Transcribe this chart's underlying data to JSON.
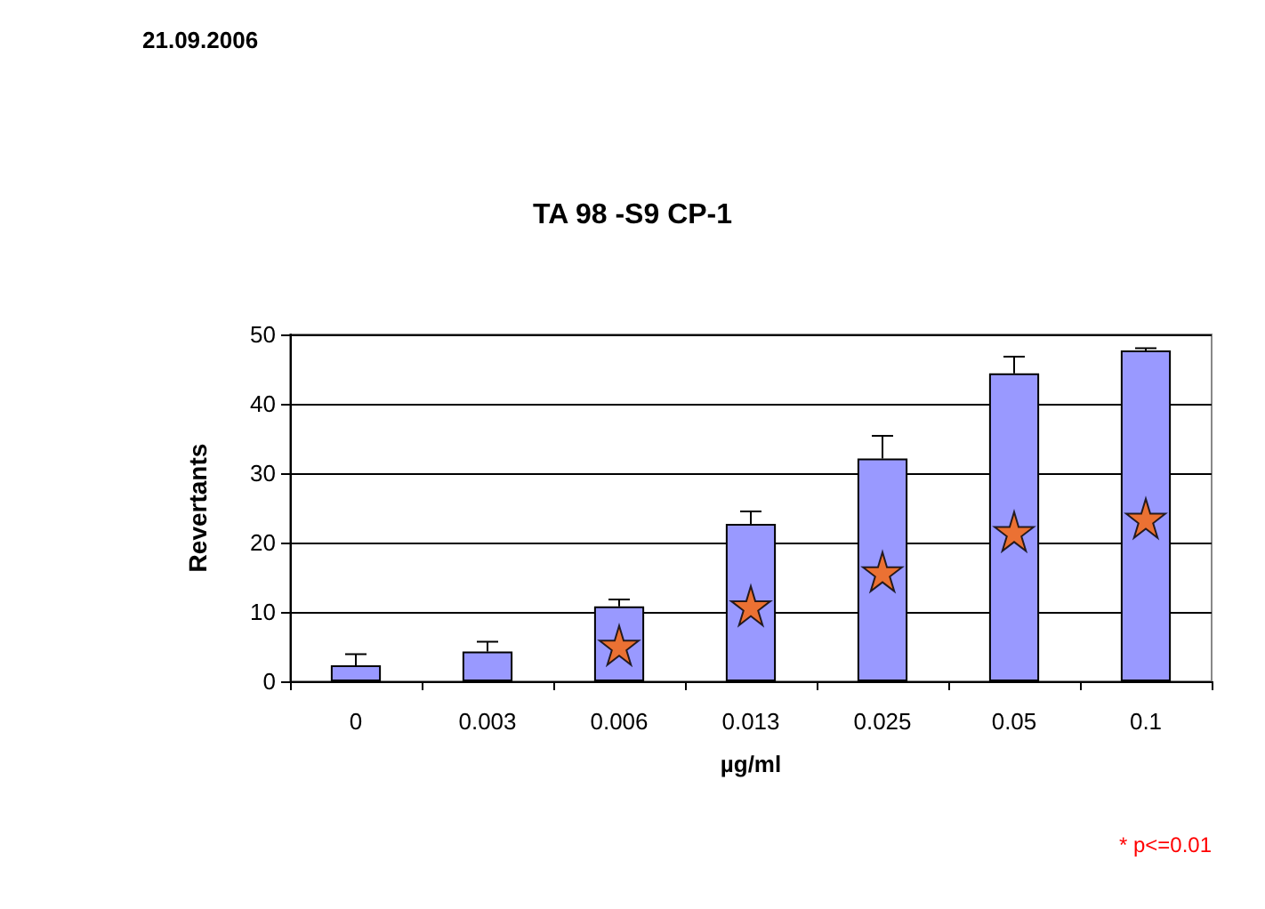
{
  "chart_data": {
    "type": "bar",
    "title": "TA 98 -S9 CP-1",
    "xlabel": "µg/ml",
    "ylabel": "Revertants",
    "categories": [
      "0",
      "0.003",
      "0.006",
      "0.013",
      "0.025",
      "0.05",
      "0.1"
    ],
    "series": [
      {
        "color": "#9999ff",
        "values": [
          2.3,
          4.3,
          10.8,
          22.7,
          32.1,
          44.4,
          47.7
        ],
        "errors": [
          [
            2.3,
            3.9
          ],
          [
            4.3,
            5.7
          ],
          [
            10.8,
            11.8
          ],
          [
            22.7,
            24.5
          ],
          [
            32.1,
            35.4
          ],
          [
            44.4,
            46.8
          ],
          [
            47.7,
            48
          ]
        ]
      },
      {
        "type": "scatter",
        "color": "#ff6600",
        "marker": "star",
        "x": [
          "0.006",
          "0.013",
          "0.025",
          "0.05",
          "0.1"
        ],
        "values": [
          5.2,
          10.9,
          15.8,
          21.6,
          23.5
        ]
      }
    ],
    "ylim": [
      0,
      50
    ],
    "yticks": [
      0,
      10,
      20,
      30,
      40,
      50
    ],
    "grid": "y",
    "annotations": [
      "21.09.2006",
      "* p<=0.01"
    ]
  }
}
